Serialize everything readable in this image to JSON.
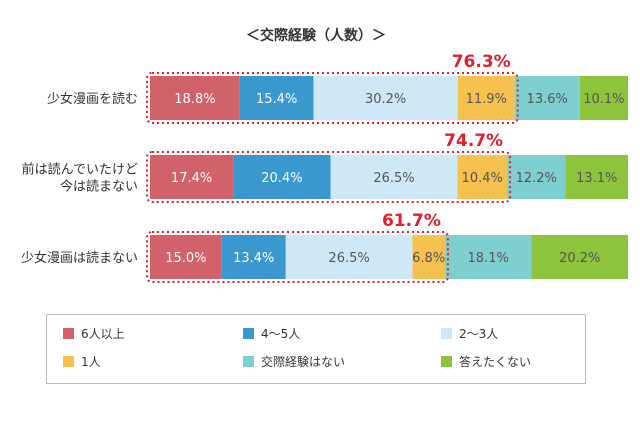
{
  "colors": {
    "six_plus": "#d1626a",
    "four_five": "#3a98cf",
    "two_three": "#cfe8f8",
    "one": "#f7c14f",
    "none": "#7ecfd0",
    "no_answer": "#8dc43b",
    "highlight": "#e0202a",
    "label_dark": "#555555",
    "label_light": "#ffffff"
  },
  "chart_data": {
    "type": "bar",
    "orientation": "horizontal",
    "stacked": true,
    "normalized": true,
    "title": "＜交際経験（人数）＞",
    "categories": [
      "少女漫画を読む",
      "前は読んでいたけど今は読まない",
      "少女漫画は読まない"
    ],
    "category_lines": [
      [
        "少女漫画を読む"
      ],
      [
        "前は読んでいたけど",
        "今は読まない"
      ],
      [
        "少女漫画は読まない"
      ]
    ],
    "series": [
      {
        "name": "6人以上",
        "values": [
          18.8,
          17.4,
          15.0
        ],
        "labels": [
          "18.8%",
          "17.4%",
          "15.0%"
        ]
      },
      {
        "name": "4〜5人",
        "values": [
          15.4,
          20.4,
          13.4
        ],
        "labels": [
          "15.4%",
          "20.4%",
          "13.4%"
        ]
      },
      {
        "name": "2〜3人",
        "values": [
          30.2,
          26.5,
          26.5
        ],
        "labels": [
          "30.2%",
          "26.5%",
          "26.5%"
        ]
      },
      {
        "name": "1人",
        "values": [
          11.9,
          10.4,
          6.8
        ],
        "labels": [
          "11.9%",
          "10.4%",
          "6.8%"
        ]
      },
      {
        "name": "交際経験はない",
        "values": [
          13.6,
          12.2,
          18.1
        ],
        "labels": [
          "13.6%",
          "12.2%",
          "18.1%"
        ]
      },
      {
        "name": "答えたくない",
        "values": [
          10.1,
          13.1,
          20.2
        ],
        "labels": [
          "10.1%",
          "13.1%",
          "20.2%"
        ]
      }
    ],
    "annotations": [
      "76.3%",
      "74.7%",
      "61.7%"
    ],
    "legend_position": "bottom",
    "grid": false
  }
}
